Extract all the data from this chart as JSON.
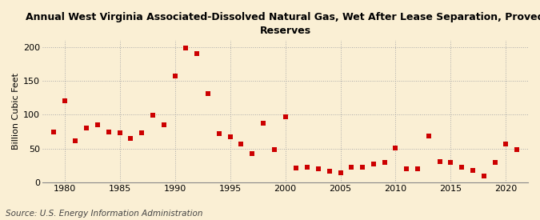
{
  "title_line1": "Annual West Virginia Associated-Dissolved Natural Gas, Wet After Lease Separation, Proved",
  "title_line2": "Reserves",
  "ylabel": "Billion Cubic Feet",
  "source": "Source: U.S. Energy Information Administration",
  "background_color": "#faefd4",
  "marker_color": "#cc0000",
  "years": [
    1979,
    1980,
    1981,
    1982,
    1983,
    1984,
    1985,
    1986,
    1987,
    1988,
    1989,
    1990,
    1991,
    1992,
    1993,
    1994,
    1995,
    1996,
    1997,
    1998,
    1999,
    2000,
    2001,
    2002,
    2003,
    2004,
    2005,
    2006,
    2007,
    2008,
    2009,
    2010,
    2011,
    2012,
    2013,
    2014,
    2015,
    2016,
    2017,
    2018,
    2019,
    2020,
    2021
  ],
  "values": [
    75,
    121,
    62,
    80,
    85,
    75,
    73,
    65,
    73,
    99,
    85,
    157,
    198,
    190,
    131,
    72,
    67,
    57,
    42,
    87,
    48,
    97,
    21,
    22,
    20,
    16,
    14,
    22,
    22,
    27,
    29,
    51,
    20,
    20,
    68,
    31,
    29,
    22,
    18,
    10,
    29,
    57,
    49
  ],
  "xlim": [
    1978,
    2022
  ],
  "ylim": [
    0,
    210
  ],
  "yticks": [
    0,
    50,
    100,
    150,
    200
  ],
  "xticks": [
    1980,
    1985,
    1990,
    1995,
    2000,
    2005,
    2010,
    2015,
    2020
  ],
  "title_fontsize": 9,
  "tick_fontsize": 8,
  "ylabel_fontsize": 8,
  "source_fontsize": 7.5
}
